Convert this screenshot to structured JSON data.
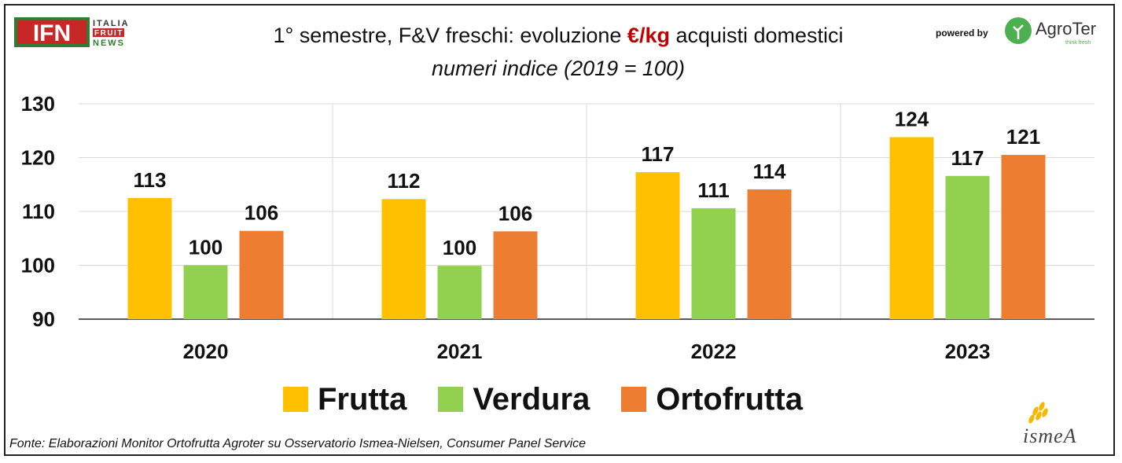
{
  "header": {
    "logo_ifn": {
      "letters": "IFN",
      "line1": "ITALIA",
      "line2": "FRUIT",
      "line3": "NEWS"
    },
    "title_part1": "1° semestre, F&V freschi: evoluzione ",
    "title_unit": "€/kg",
    "title_part2": " acquisti domestici",
    "subtitle": "numeri indice (2019 = 100)",
    "powered_by": "powered by",
    "agroter_logo": {
      "name": "AgroTer",
      "tagline": "think fresh"
    }
  },
  "colors": {
    "frutta": "#FFC000",
    "verdura": "#92D050",
    "ortofrutta": "#ED7D31",
    "title_accent": "#C00000",
    "grid": "#D9D9D9"
  },
  "chart_data": {
    "type": "bar",
    "categories": [
      "2020",
      "2021",
      "2022",
      "2023"
    ],
    "series": [
      {
        "name": "Frutta",
        "values": [
          112.5,
          112.3,
          117.3,
          123.8
        ],
        "labels": [
          "113",
          "112",
          "117",
          "124"
        ],
        "color": "#FFC000"
      },
      {
        "name": "Verdura",
        "values": [
          100.0,
          99.9,
          110.6,
          116.6
        ],
        "labels": [
          "100",
          "100",
          "111",
          "117"
        ],
        "color": "#92D050"
      },
      {
        "name": "Ortofrutta",
        "values": [
          106.4,
          106.3,
          114.1,
          120.5
        ],
        "labels": [
          "106",
          "106",
          "114",
          "121"
        ],
        "color": "#ED7D31"
      }
    ],
    "ylim": [
      90,
      130
    ],
    "yticks": [
      90,
      100,
      110,
      120,
      130
    ],
    "grid": true,
    "legend_position": "bottom"
  },
  "footer": {
    "source": "Fonte: Elaborazioni Monitor Ortofrutta Agroter su Osservatorio Ismea-Nielsen, Consumer Panel Service",
    "ismea_logo": "ismeA"
  }
}
